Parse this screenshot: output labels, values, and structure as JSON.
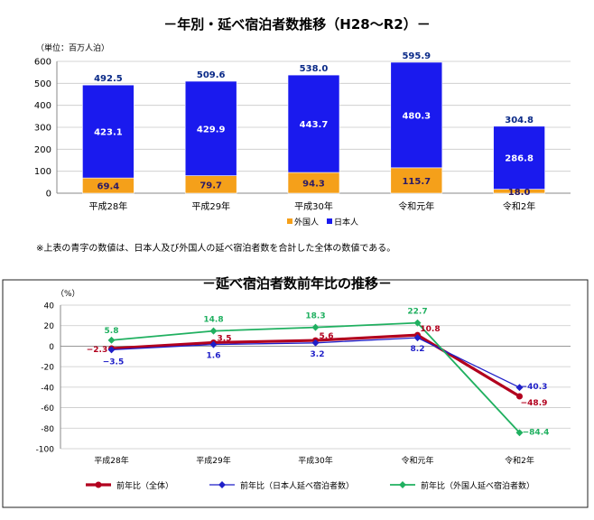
{
  "chart1": {
    "title": "－年別・延べ宿泊者数推移（H28～R2）－",
    "unit": "（単位：百万人泊）",
    "note": "※上表の青字の数値は、日本人及び外国人の延べ宿泊者数を合計した全体の数値である。"
  },
  "chart2": {
    "title": "－延べ宿泊者数前年比の推移－",
    "unit": "（%）"
  },
  "colors": {
    "japanese_bar": "#1a1aee",
    "foreign_bar": "#f5a01a",
    "overall_line": "#b2001e",
    "japanese_line": "#1f1fc8",
    "foreign_line": "#20b060"
  },
  "chart_data": [
    {
      "type": "bar",
      "stacked": true,
      "categories": [
        "平成28年",
        "平成29年",
        "平成30年",
        "令和元年",
        "令和2年"
      ],
      "series": [
        {
          "name": "外国人",
          "values": [
            69.4,
            79.7,
            94.3,
            115.7,
            18.0
          ]
        },
        {
          "name": "日本人",
          "values": [
            423.1,
            429.9,
            443.7,
            480.3,
            286.8
          ]
        }
      ],
      "totals": [
        492.5,
        509.6,
        538.0,
        595.9,
        304.8
      ],
      "title": "－年別・延べ宿泊者数推移（H28～R2）－",
      "ylim": [
        0,
        600
      ],
      "yticks": [
        0,
        100,
        200,
        300,
        400,
        500,
        600
      ],
      "grid": true,
      "legend": "bottom"
    },
    {
      "type": "line",
      "categories": [
        "平成28年",
        "平成29年",
        "平成30年",
        "令和元年",
        "令和2年"
      ],
      "series": [
        {
          "name": "前年比（全体）",
          "values": [
            -2.3,
            3.5,
            5.6,
            10.8,
            -48.9
          ]
        },
        {
          "name": "前年比（日本人延べ宿泊者数）",
          "values": [
            -3.5,
            1.6,
            3.2,
            8.2,
            -40.3
          ]
        },
        {
          "name": "前年比（外国人延べ宿泊者数）",
          "values": [
            5.8,
            14.8,
            18.3,
            22.7,
            -84.4
          ]
        }
      ],
      "title": "－延べ宿泊者数前年比の推移－",
      "ylim": [
        -100,
        40
      ],
      "yticks": [
        -100,
        -80,
        -60,
        -40,
        -20,
        0,
        20,
        40
      ],
      "grid": true,
      "legend": "bottom"
    }
  ]
}
